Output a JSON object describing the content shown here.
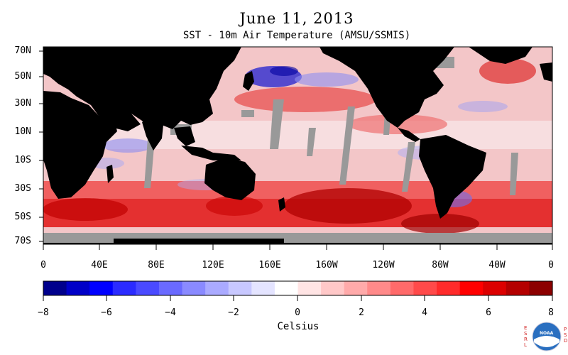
{
  "title": "June 11, 2013",
  "subtitle": "SST - 10m Air Temperature (AMSU/SSMIS)",
  "colors": {
    "land": "#000000",
    "missing": "#999999",
    "colorbar": [
      "#00008c",
      "#0000c8",
      "#0000ff",
      "#2b2bff",
      "#4a4aff",
      "#6a6aff",
      "#8a8aff",
      "#aaaaff",
      "#c8c8ff",
      "#e4e4ff",
      "#ffffff",
      "#ffe4e4",
      "#ffc8c8",
      "#ffaaaa",
      "#ff8a8a",
      "#ff6a6a",
      "#ff4a4a",
      "#ff2b2b",
      "#ff0000",
      "#dc0000",
      "#b40000",
      "#8c0000"
    ]
  },
  "axes": {
    "lat_labels": [
      "70N",
      "50N",
      "30N",
      "10N",
      "10S",
      "30S",
      "50S",
      "70S"
    ],
    "lon_labels": [
      "0",
      "40E",
      "80E",
      "120E",
      "160E",
      "160W",
      "120W",
      "80W",
      "40W",
      "0"
    ]
  },
  "colorbar": {
    "ticks": [
      "−8",
      "−6",
      "−4",
      "−2",
      "0",
      "2",
      "4",
      "6",
      "8"
    ],
    "units": "Celsius",
    "range": [
      -8,
      8
    ]
  },
  "logo": {
    "left_letters": "ESRL",
    "right_letters": "PSD",
    "center": "NOAA"
  }
}
